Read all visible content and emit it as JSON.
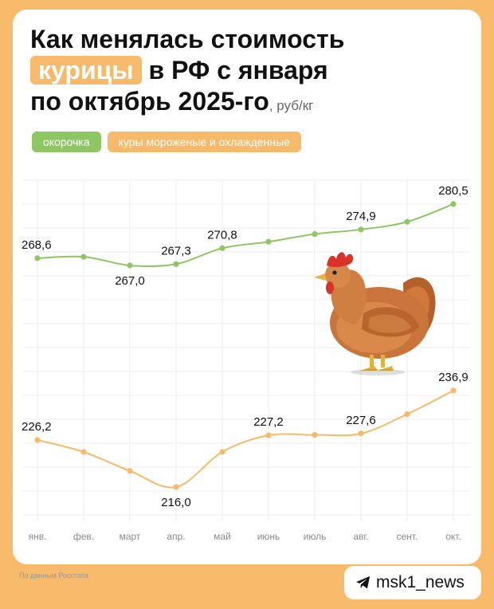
{
  "title": {
    "line1": "Как менялась стоимость",
    "highlight": "курицы",
    "line2_rest": "в РФ с января",
    "line3": "по октябрь 2025-го",
    "unit": ", руб/кг"
  },
  "legend": [
    {
      "label": "окорочка",
      "color": "#8dc663"
    },
    {
      "label": "куры мороженые и охлажденные",
      "color": "#f7b96a"
    }
  ],
  "chart_data": {
    "type": "line",
    "categories": [
      "янв.",
      "фев.",
      "март",
      "апр.",
      "май",
      "июнь",
      "июль",
      "авг.",
      "сент.",
      "окт."
    ],
    "series": [
      {
        "name": "окорочка",
        "color": "#8dc663",
        "values": [
          268.6,
          268.9,
          267.0,
          267.3,
          270.8,
          272.2,
          273.9,
          274.9,
          276.6,
          280.5
        ],
        "labels": [
          "268,6",
          null,
          "267,0",
          "267,3",
          "270,8",
          null,
          null,
          "274,9",
          null,
          "280,5"
        ]
      },
      {
        "name": "куры мороженые и охлажденные",
        "color": "#f7b96a",
        "values": [
          226.2,
          223.6,
          219.5,
          216.0,
          223.6,
          227.2,
          227.3,
          227.6,
          231.8,
          236.9
        ],
        "labels": [
          "226,2",
          null,
          null,
          "216,0",
          null,
          "227,2",
          null,
          "227,6",
          null,
          "236,9"
        ]
      }
    ],
    "grid": true
  },
  "source": "По данным Росстата",
  "channel": {
    "name": "msk1_news",
    "icon": "telegram-icon"
  }
}
